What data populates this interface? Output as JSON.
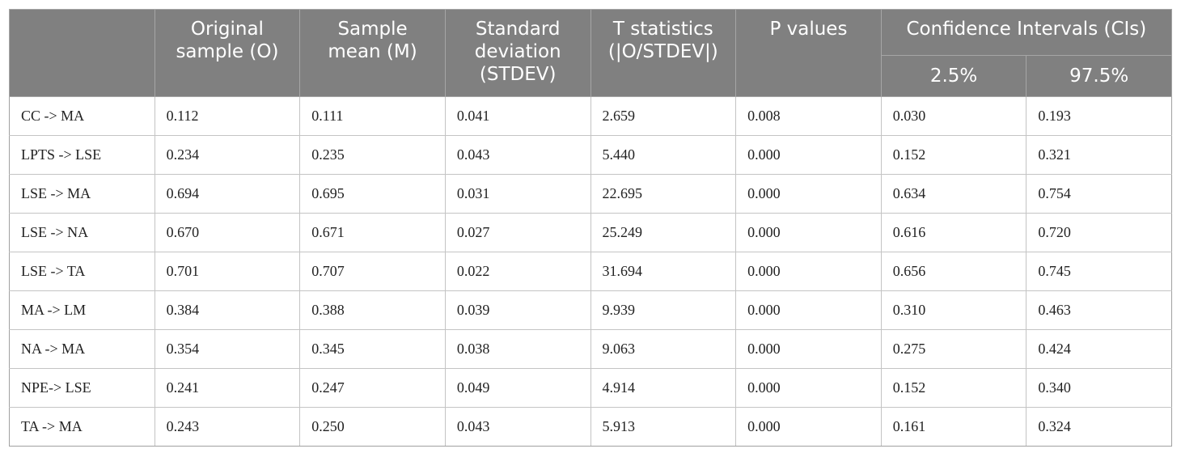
{
  "table": {
    "header": {
      "columns": [
        "",
        "Original sample (O)",
        "Sample mean (M)",
        "Standard deviation (STDEV)",
        "T statistics (|O/STDEV|)",
        "P values"
      ],
      "group": "Confidence Intervals (CIs)",
      "subcolumns": [
        "2.5%",
        "97.5%"
      ]
    },
    "rows": [
      [
        "CC -> MA",
        "0.112",
        "0.111",
        "0.041",
        "2.659",
        "0.008",
        "0.030",
        "0.193"
      ],
      [
        "LPTS -> LSE",
        "0.234",
        "0.235",
        "0.043",
        "5.440",
        "0.000",
        "0.152",
        "0.321"
      ],
      [
        "LSE -> MA",
        "0.694",
        "0.695",
        "0.031",
        "22.695",
        "0.000",
        "0.634",
        "0.754"
      ],
      [
        "LSE -> NA",
        "0.670",
        "0.671",
        "0.027",
        "25.249",
        "0.000",
        "0.616",
        "0.720"
      ],
      [
        "LSE -> TA",
        "0.701",
        "0.707",
        "0.022",
        "31.694",
        "0.000",
        "0.656",
        "0.745"
      ],
      [
        "MA -> LM",
        "0.384",
        "0.388",
        "0.039",
        "9.939",
        "0.000",
        "0.310",
        "0.463"
      ],
      [
        "NA -> MA",
        "0.354",
        "0.345",
        "0.038",
        "9.063",
        "0.000",
        "0.275",
        "0.424"
      ],
      [
        "NPE-> LSE",
        "0.241",
        "0.247",
        "0.049",
        "4.914",
        "0.000",
        "0.152",
        "0.340"
      ],
      [
        "TA -> MA",
        "0.243",
        "0.250",
        "0.043",
        "5.913",
        "0.000",
        "0.161",
        "0.324"
      ]
    ]
  }
}
